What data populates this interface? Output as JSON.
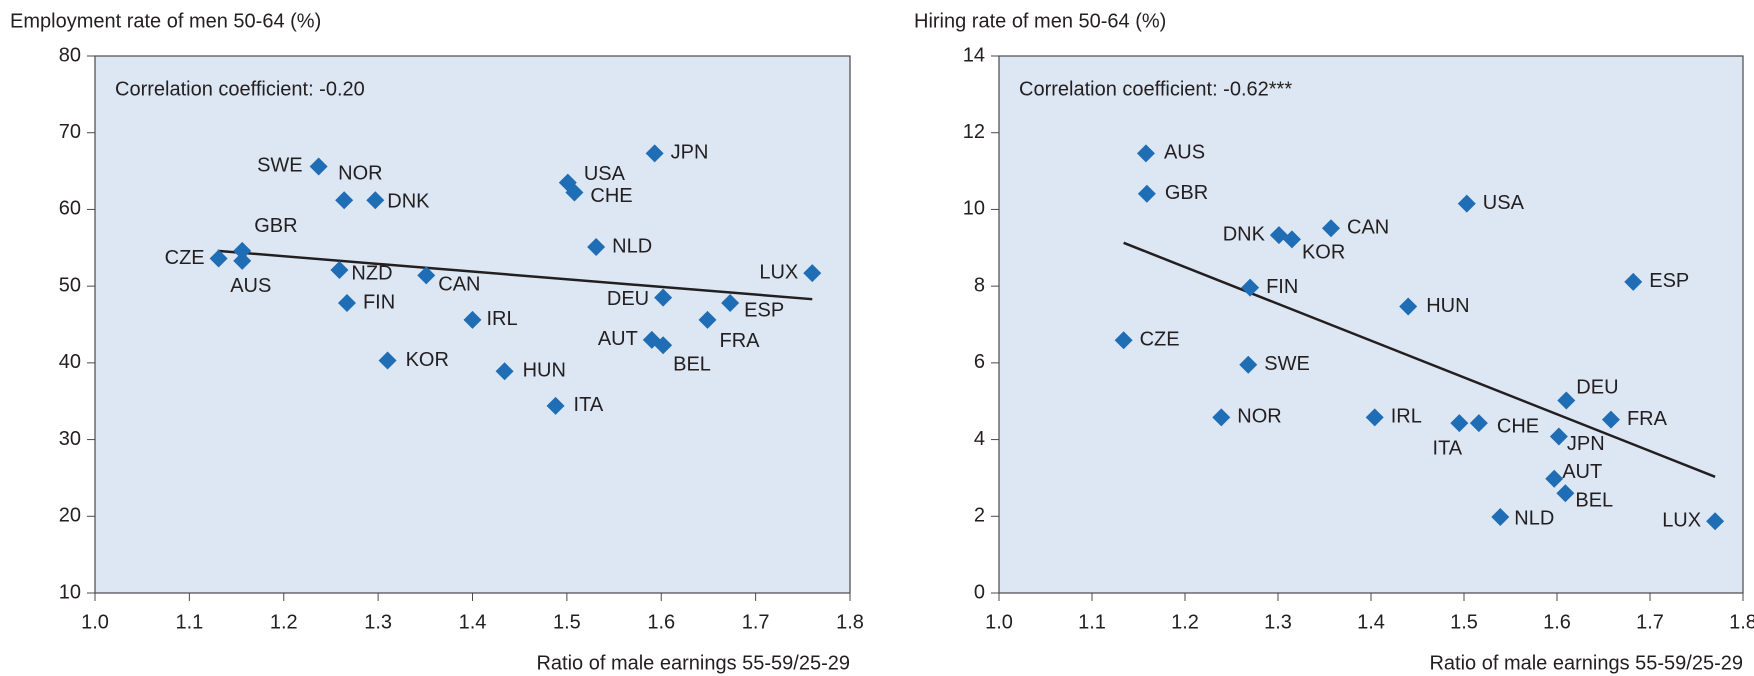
{
  "chart_data": [
    {
      "type": "scatter",
      "y_label": "Employment rate of men 50-64 (%)",
      "x_label": "Ratio of male earnings 55-59/25-29",
      "annotation": "Correlation coefficient: -0.20",
      "color": "#1f6db5",
      "labels": [
        "SWE",
        "NOR",
        "DNK",
        "USA",
        "CHE",
        "JPN",
        "GBR",
        "CZE",
        "AUS",
        "NZD",
        "CAN",
        "NLD",
        "LUX",
        "DEU",
        "FIN",
        "ESP",
        "IRL",
        "FRA",
        "AUT",
        "BEL",
        "KOR",
        "HUN",
        "ITA"
      ],
      "x": [
        1.237,
        1.264,
        1.297,
        1.501,
        1.508,
        1.593,
        1.156,
        1.131,
        1.156,
        1.259,
        1.351,
        1.531,
        1.76,
        1.602,
        1.267,
        1.673,
        1.4,
        1.649,
        1.59,
        1.602,
        1.31,
        1.434,
        1.488
      ],
      "values": [
        65.6,
        61.2,
        61.2,
        63.5,
        62.2,
        67.3,
        54.6,
        53.6,
        53.3,
        52.1,
        51.4,
        55.1,
        51.7,
        48.5,
        47.8,
        47.8,
        45.6,
        45.6,
        43.0,
        42.3,
        40.3,
        38.9,
        34.4
      ],
      "trendline": {
        "x": [
          1.13,
          1.76
        ],
        "y": [
          54.6,
          48.3
        ]
      },
      "xlim": [
        1.0,
        1.8
      ],
      "xticks": [
        {
          "value": 1.0,
          "label": "1.0"
        },
        1.1,
        1.2,
        1.3,
        1.4,
        1.5,
        1.6,
        1.7,
        1.8
      ],
      "ylim": [
        10,
        80
      ],
      "yticks": [
        10,
        20,
        30,
        40,
        50,
        60,
        70,
        80
      ]
    },
    {
      "type": "scatter",
      "y_label": "Hiring rate of men 50-64 (%)",
      "x_label": "Ratio of male earnings 55-59/25-29",
      "annotation": "Correlation coefficient: -0.62***",
      "color": "#1f6db5",
      "labels": [
        "AUS",
        "GBR",
        "USA",
        "DNK",
        "KOR",
        "CAN",
        "ESP",
        "FIN",
        "HUN",
        "CZE",
        "SWE",
        "DEU",
        "NOR",
        "IRL",
        "ITA",
        "CHE",
        "FRA",
        "JPN",
        "AUT",
        "BEL",
        "NLD",
        "LUX"
      ],
      "x": [
        1.158,
        1.159,
        1.503,
        1.301,
        1.315,
        1.357,
        1.682,
        1.27,
        1.44,
        1.134,
        1.268,
        1.61,
        1.239,
        1.404,
        1.495,
        1.516,
        1.658,
        1.602,
        1.597,
        1.609,
        1.539,
        1.77
      ],
      "values": [
        11.46,
        10.41,
        10.15,
        9.33,
        9.22,
        9.51,
        8.11,
        7.96,
        7.47,
        6.59,
        5.95,
        5.02,
        4.58,
        4.58,
        4.43,
        4.43,
        4.52,
        4.08,
        2.98,
        2.6,
        1.98,
        1.87
      ],
      "trendline": {
        "x": [
          1.134,
          1.77
        ],
        "y": [
          9.13,
          3.03
        ]
      },
      "xlim": [
        1.0,
        1.8
      ],
      "xticks": [
        {
          "value": 1.0,
          "label": "1.0"
        },
        1.1,
        1.2,
        1.3,
        1.4,
        1.5,
        1.6,
        1.7,
        1.8
      ],
      "ylim": [
        0,
        14
      ],
      "yticks": [
        0,
        2,
        4,
        6,
        8,
        10,
        12,
        14
      ]
    }
  ]
}
